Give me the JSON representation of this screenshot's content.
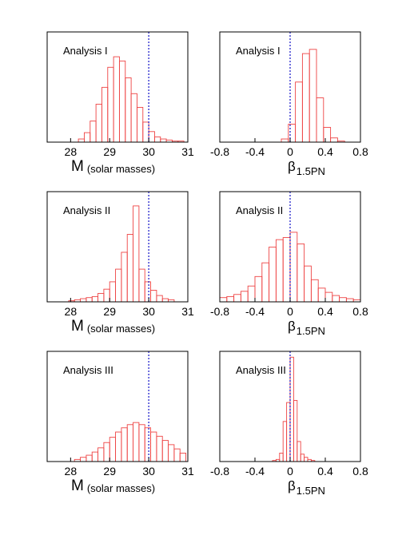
{
  "chart_data": [
    {
      "type": "bar",
      "panel_label": "Analysis I",
      "xlabel_main": "M",
      "xlabel_sub": "(solar masses)",
      "xlim": [
        27.4,
        31
      ],
      "xticks": [
        "28",
        "29",
        "30",
        "31"
      ],
      "x_tick_values": [
        28,
        29,
        30,
        31
      ],
      "marker_x": 30,
      "bin_start": 28.2,
      "bin_width": 0.15,
      "values": [
        0.03,
        0.09,
        0.2,
        0.36,
        0.52,
        0.71,
        0.81,
        0.77,
        0.61,
        0.46,
        0.33,
        0.19,
        0.1,
        0.05,
        0.03,
        0.02,
        0.01,
        0.01
      ]
    },
    {
      "type": "bar",
      "panel_label": "Analysis I",
      "xlabel_main": "β",
      "xlabel_sub": "1.5PN",
      "xlim": [
        -0.8,
        0.8
      ],
      "xticks": [
        "-0.8",
        "-0.4",
        "0",
        "0.4",
        "0.8"
      ],
      "x_tick_values": [
        -0.8,
        -0.4,
        0,
        0.4,
        0.8
      ],
      "marker_x": 0,
      "bin_start": -0.1,
      "bin_width": 0.08,
      "values": [
        0.03,
        0.17,
        0.57,
        0.84,
        0.88,
        0.42,
        0.14,
        0.04,
        0.01
      ]
    },
    {
      "type": "bar",
      "panel_label": "Analysis II",
      "xlabel_main": "M",
      "xlabel_sub": "(solar masses)",
      "xlim": [
        27.4,
        31
      ],
      "xticks": [
        "28",
        "29",
        "30",
        "31"
      ],
      "x_tick_values": [
        28,
        29,
        30,
        31
      ],
      "marker_x": 30,
      "bin_start": 27.95,
      "bin_width": 0.15,
      "values": [
        0.01,
        0.02,
        0.03,
        0.04,
        0.05,
        0.08,
        0.12,
        0.19,
        0.31,
        0.47,
        0.64,
        0.91,
        0.31,
        0.19,
        0.11,
        0.06,
        0.03,
        0.02
      ]
    },
    {
      "type": "bar",
      "panel_label": "Analysis II",
      "xlabel_main": "β",
      "xlabel_sub": "1.5PN",
      "xlim": [
        -0.8,
        0.8
      ],
      "xticks": [
        "-0.8",
        "-0.4",
        "0",
        "0.4",
        "0.8"
      ],
      "x_tick_values": [
        -0.8,
        -0.4,
        0,
        0.4,
        0.8
      ],
      "marker_x": 0,
      "bin_start": -0.8,
      "bin_width": 0.08,
      "values": [
        0.04,
        0.05,
        0.07,
        0.1,
        0.15,
        0.24,
        0.37,
        0.52,
        0.59,
        0.61,
        0.66,
        0.55,
        0.34,
        0.21,
        0.13,
        0.09,
        0.06,
        0.04,
        0.03,
        0.02
      ]
    },
    {
      "type": "bar",
      "panel_label": "Analysis III",
      "xlabel_main": "M",
      "xlabel_sub": "(solar masses)",
      "xlim": [
        27.4,
        31
      ],
      "xticks": [
        "28",
        "29",
        "30",
        "31"
      ],
      "x_tick_values": [
        28,
        29,
        30,
        31
      ],
      "marker_x": 30,
      "bin_start": 28.1,
      "bin_width": 0.15,
      "values": [
        0.02,
        0.04,
        0.06,
        0.09,
        0.13,
        0.18,
        0.23,
        0.28,
        0.32,
        0.35,
        0.37,
        0.35,
        0.32,
        0.28,
        0.24,
        0.2,
        0.16,
        0.12,
        0.08
      ]
    },
    {
      "type": "bar",
      "panel_label": "Analysis III",
      "xlabel_main": "β",
      "xlabel_sub": "1.5PN",
      "xlim": [
        -0.8,
        0.8
      ],
      "xticks": [
        "-0.8",
        "-0.4",
        "0",
        "0.4",
        "0.8"
      ],
      "x_tick_values": [
        -0.8,
        -0.4,
        0,
        0.4,
        0.8
      ],
      "marker_x": 0,
      "bin_start": -0.2,
      "bin_width": 0.04,
      "values": [
        0.01,
        0.02,
        0.08,
        0.38,
        0.56,
        0.99,
        0.58,
        0.19,
        0.07,
        0.04,
        0.02,
        0.01
      ]
    }
  ],
  "colors": {
    "bars": "#ee4444",
    "marker": "#2222cc",
    "axes": "#000000"
  }
}
